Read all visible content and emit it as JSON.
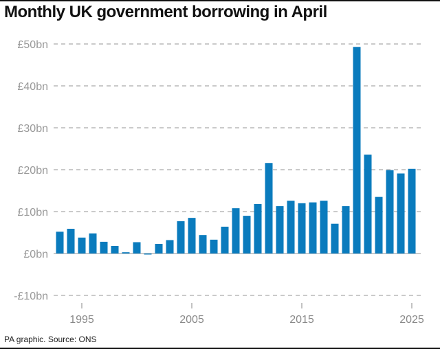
{
  "header": {
    "title": "Monthly UK government borrowing in April"
  },
  "footer": {
    "source": "PA graphic. Source: ONS"
  },
  "colors": {
    "bar": "#0a7bbd",
    "grid": "#aaaaaa"
  },
  "chart_data": {
    "type": "bar",
    "title": "Monthly UK government borrowing in April",
    "xlabel": "",
    "ylabel": "",
    "categories": [
      1993,
      1994,
      1995,
      1996,
      1997,
      1998,
      1999,
      2000,
      2001,
      2002,
      2003,
      2004,
      2005,
      2006,
      2007,
      2008,
      2009,
      2010,
      2011,
      2012,
      2013,
      2014,
      2015,
      2016,
      2017,
      2018,
      2019,
      2020,
      2021,
      2022,
      2023,
      2024,
      2025
    ],
    "values": [
      5.2,
      5.9,
      3.8,
      4.8,
      2.8,
      1.8,
      0.3,
      2.7,
      -0.2,
      2.3,
      3.2,
      7.7,
      8.5,
      4.4,
      3.3,
      6.4,
      10.8,
      9.0,
      11.8,
      21.6,
      11.3,
      12.6,
      12.0,
      12.2,
      12.6,
      7.1,
      11.3,
      49.3,
      23.6,
      13.5,
      19.9,
      19.1,
      20.2
    ],
    "ylim": [
      -10,
      50
    ],
    "yticks": [
      -10,
      0,
      10,
      20,
      30,
      40,
      50
    ],
    "ytick_labels": [
      "-£10bn",
      "£0bn",
      "£10bn",
      "£20bn",
      "£30bn",
      "£40bn",
      "£50bn"
    ],
    "xtick_labels": [
      "1995",
      "2005",
      "2015",
      "2025"
    ],
    "grid": true
  }
}
